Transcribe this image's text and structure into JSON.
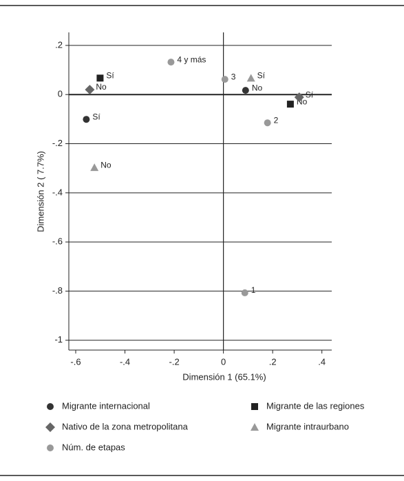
{
  "chart_data": {
    "type": "scatter",
    "xlabel": "Dimensión 1 (65.1%)",
    "ylabel": "Dimensión 2 ( 7.7%)",
    "xlim": [
      -0.628,
      0.44
    ],
    "ylim": [
      -1.04,
      0.253
    ],
    "xticks": [
      {
        "value": -0.6,
        "label": "-.6"
      },
      {
        "value": -0.4,
        "label": "-.4"
      },
      {
        "value": -0.2,
        "label": "-.2"
      },
      0,
      {
        "value": 0.2,
        "label": ".2"
      },
      {
        "value": 0.4,
        "label": ".4"
      }
    ],
    "yticks": [
      {
        "value": 0.2,
        "label": ".2"
      },
      0,
      {
        "value": -0.2,
        "label": "-.2"
      },
      {
        "value": -0.4,
        "label": "-.4"
      },
      {
        "value": -0.6,
        "label": "-.6"
      },
      {
        "value": -0.8,
        "label": "-.8"
      },
      {
        "value": -1,
        "label": "-1"
      }
    ],
    "grid": true,
    "series": [
      {
        "name": "Migrante internacional",
        "color": "#333333",
        "marker": "circle",
        "x": [
          -0.557,
          0.09
        ],
        "y": [
          -0.101,
          0.017
        ],
        "point_labels": [
          "Sí",
          "No"
        ]
      },
      {
        "name": "Migrante de las regiones",
        "color": "#222222",
        "marker": "square",
        "x": [
          -0.501,
          0.272
        ],
        "y": [
          0.067,
          -0.039
        ],
        "point_labels": [
          "Sí",
          "No"
        ]
      },
      {
        "name": "Nativo de la zona metropolitana",
        "color": "#666666",
        "marker": "diamond",
        "x": [
          -0.543,
          0.308
        ],
        "y": [
          0.02,
          -0.011
        ],
        "point_labels": [
          "No",
          "Sí"
        ]
      },
      {
        "name": "Migrante intraurbano",
        "color": "#999999",
        "marker": "triangle",
        "x": [
          0.112,
          -0.524
        ],
        "y": [
          0.067,
          -0.297
        ],
        "point_labels": [
          "Sí",
          "No"
        ]
      },
      {
        "name": "Núm. de etapas",
        "color": "#999999",
        "marker": "circle",
        "x": [
          -0.213,
          0.006,
          0.179,
          0.087
        ],
        "y": [
          0.132,
          0.062,
          -0.115,
          -0.807
        ],
        "point_labels": [
          "4 y más",
          "3",
          "2",
          "1"
        ]
      }
    ]
  }
}
